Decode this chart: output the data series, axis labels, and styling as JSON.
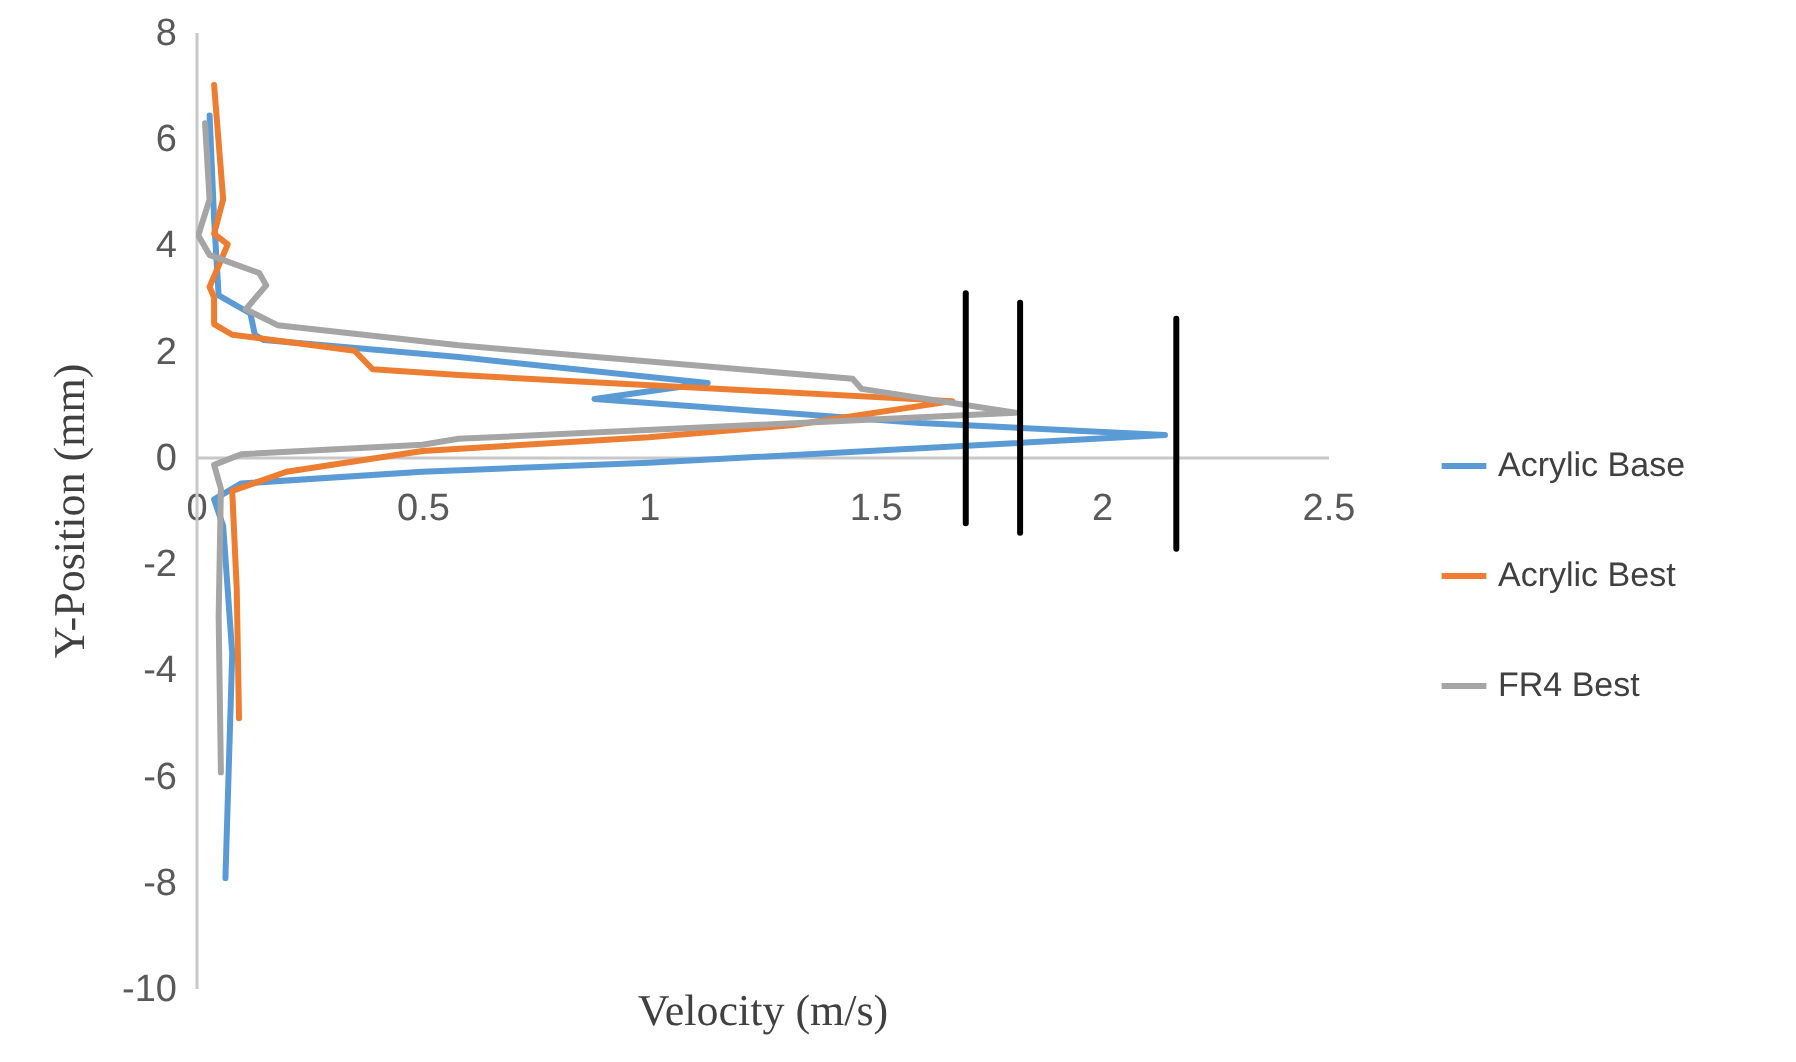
{
  "chart_data": {
    "type": "line",
    "xlabel": "Velocity (m/s)",
    "ylabel": "Y-Position (mm)",
    "xlim": [
      0,
      2.5
    ],
    "xticks": [
      0,
      0.5,
      1,
      1.5,
      2,
      2.5
    ],
    "ylim": [
      -10,
      8
    ],
    "yticks": [
      -10,
      -8,
      -6,
      -4,
      -2,
      0,
      2,
      4,
      6,
      8
    ],
    "grid": false,
    "legend": "right",
    "marker": "none",
    "line_style": "solid",
    "series": [
      {
        "name": "Acrylic Base",
        "color": "#5b9bd5",
        "x": [
          0.03,
          0.04,
          0.05,
          0.12,
          0.13,
          0.15,
          0.58,
          1.13,
          0.88,
          1.6,
          2.14,
          1.0,
          0.5,
          0.1,
          0.04,
          0.06,
          0.08,
          0.065
        ],
        "values": [
          6.43,
          4.48,
          3.04,
          2.7,
          2.3,
          2.2,
          1.88,
          1.39,
          1.09,
          0.64,
          0.41,
          -0.11,
          -0.28,
          -0.5,
          -0.8,
          -1.3,
          -3.7,
          -7.93
        ]
      },
      {
        "name": "Acrylic Best",
        "color": "#ed7d31",
        "x": [
          0.04,
          0.06,
          0.04,
          0.07,
          0.03,
          0.04,
          0.04,
          0.08,
          0.35,
          0.39,
          0.58,
          1.67,
          1.32,
          1.0,
          0.5,
          0.2,
          0.08,
          0.09,
          0.095
        ],
        "values": [
          7.0,
          4.85,
          4.2,
          4.0,
          3.2,
          3.0,
          2.5,
          2.3,
          2.0,
          1.65,
          1.54,
          1.05,
          0.6,
          0.37,
          0.11,
          -0.28,
          -0.64,
          -2.5,
          -4.92
        ]
      },
      {
        "name": "FR4 Best",
        "color": "#a5a5a5",
        "x": [
          0.02,
          0.03,
          0.005,
          0.03,
          0.14,
          0.155,
          0.11,
          0.18,
          0.58,
          1.45,
          1.47,
          1.81,
          0.58,
          0.5,
          0.1,
          0.04,
          0.055,
          0.05,
          0.055
        ],
        "values": [
          6.28,
          4.85,
          4.17,
          3.8,
          3.46,
          3.23,
          2.78,
          2.48,
          2.1,
          1.47,
          1.28,
          0.83,
          0.34,
          0.23,
          0.05,
          -0.15,
          -0.6,
          -3.0,
          -5.94
        ]
      },
      {
        "color": "#000000",
        "x": [
          1.7,
          1.7
        ],
        "values": [
          3.08,
          -1.25
        ]
      },
      {
        "color": "#000000",
        "x": [
          1.82,
          1.82
        ],
        "values": [
          2.9,
          -1.43
        ]
      },
      {
        "color": "#000000",
        "x": [
          2.165,
          2.165
        ],
        "values": [
          2.6,
          -1.73
        ]
      }
    ]
  }
}
